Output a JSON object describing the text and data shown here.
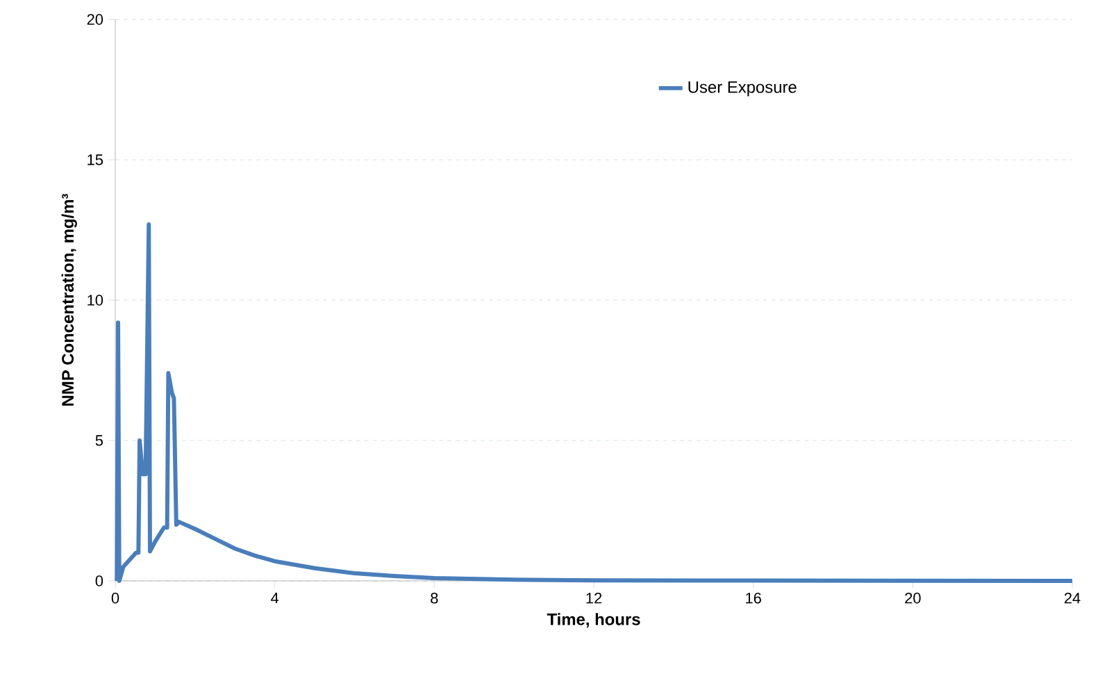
{
  "chart_data": {
    "type": "line",
    "xlabel": "Time, hours",
    "ylabel": "NMP Concentration, mg/m³",
    "xlim": [
      0,
      24
    ],
    "ylim": [
      0,
      20
    ],
    "xticks": [
      0,
      4,
      8,
      12,
      16,
      20,
      24
    ],
    "yticks": [
      0,
      5,
      10,
      15,
      20
    ],
    "grid": "y",
    "legend": "top right",
    "marker": "none",
    "line_style": "solid",
    "series": [
      {
        "name": "User Exposure",
        "color": "#4a7ebb",
        "x": [
          0.04,
          0.07,
          0.1,
          0.2,
          0.52,
          0.58,
          0.61,
          0.69,
          0.76,
          0.84,
          0.87,
          1.0,
          1.22,
          1.3,
          1.33,
          1.42,
          1.47,
          1.53,
          1.6,
          2,
          2.5,
          3,
          3.5,
          4,
          5,
          6,
          7,
          8,
          10,
          12,
          16,
          24
        ],
        "values": [
          0,
          9.2,
          0,
          0.5,
          1.0,
          1.0,
          5.0,
          3.8,
          3.8,
          12.7,
          1.05,
          1.4,
          1.9,
          1.9,
          7.4,
          6.7,
          6.5,
          2.0,
          2.1,
          1.85,
          1.5,
          1.15,
          0.9,
          0.7,
          0.45,
          0.27,
          0.17,
          0.1,
          0.04,
          0.02,
          0.01,
          0
        ]
      }
    ]
  }
}
